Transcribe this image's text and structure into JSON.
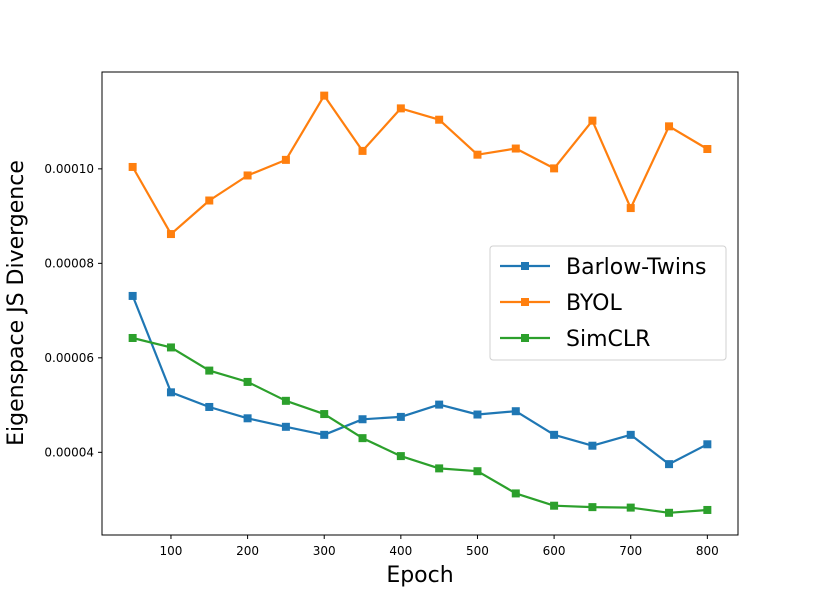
{
  "chart_data": {
    "type": "line",
    "xlabel": "Epoch",
    "ylabel": "Eigenspace JS Divergence",
    "x": [
      50,
      100,
      150,
      200,
      250,
      300,
      350,
      400,
      450,
      500,
      550,
      600,
      650,
      700,
      750,
      800
    ],
    "xticks": [
      100,
      200,
      300,
      400,
      500,
      600,
      700,
      800
    ],
    "xtick_labels": [
      "100",
      "200",
      "300",
      "400",
      "500",
      "600",
      "700",
      "800"
    ],
    "xlim": [
      10,
      840
    ],
    "yticks": [
      4e-05,
      6e-05,
      8e-05,
      0.0001
    ],
    "ytick_labels": [
      "0.00004",
      "0.00006",
      "0.00008",
      "0.00010"
    ],
    "ylim": [
      2.25e-05,
      0.0001205
    ],
    "grid": false,
    "legend_position": "center-right",
    "marker": "square",
    "series": [
      {
        "name": "Barlow-Twins",
        "color": "#1f77b4",
        "values": [
          7.31e-05,
          5.27e-05,
          4.96e-05,
          4.72e-05,
          4.54e-05,
          4.37e-05,
          4.7e-05,
          4.75e-05,
          5.01e-05,
          4.8e-05,
          4.87e-05,
          4.37e-05,
          4.14e-05,
          4.37e-05,
          3.75e-05,
          4.17e-05
        ]
      },
      {
        "name": "BYOL",
        "color": "#ff7f0e",
        "values": [
          0.0001004,
          8.62e-05,
          9.33e-05,
          9.86e-05,
          0.0001019,
          0.0001155,
          0.0001038,
          0.0001128,
          0.0001104,
          0.000103,
          0.0001043,
          0.0001001,
          0.0001102,
          9.17e-05,
          0.000109,
          0.0001042
        ]
      },
      {
        "name": "SimCLR",
        "color": "#2ca02c",
        "values": [
          6.42e-05,
          6.22e-05,
          5.73e-05,
          5.49e-05,
          5.09e-05,
          4.81e-05,
          4.3e-05,
          3.92e-05,
          3.66e-05,
          3.6e-05,
          3.13e-05,
          2.87e-05,
          2.84e-05,
          2.83e-05,
          2.72e-05,
          2.78e-05
        ]
      }
    ]
  }
}
